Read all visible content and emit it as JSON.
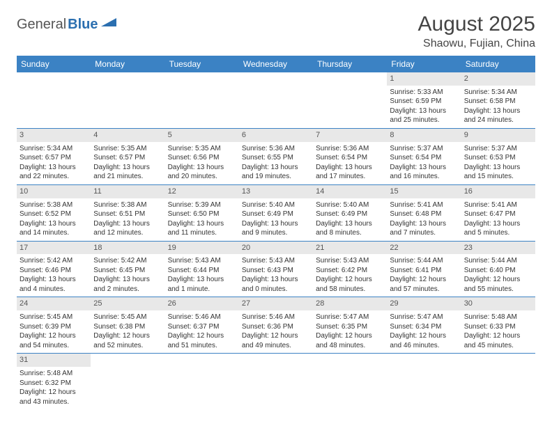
{
  "logo": {
    "text1": "General",
    "text2": "Blue"
  },
  "title": "August 2025",
  "location": "Shaowu, Fujian, China",
  "header_bg": "#3b82c4",
  "border_color": "#3b82c4",
  "daynum_bg": "#e8e8e8",
  "weekdays": [
    "Sunday",
    "Monday",
    "Tuesday",
    "Wednesday",
    "Thursday",
    "Friday",
    "Saturday"
  ],
  "weeks": [
    [
      null,
      null,
      null,
      null,
      null,
      {
        "d": "1",
        "r": "5:33 AM",
        "s": "6:59 PM",
        "dl": "13 hours and 25 minutes."
      },
      {
        "d": "2",
        "r": "5:34 AM",
        "s": "6:58 PM",
        "dl": "13 hours and 24 minutes."
      }
    ],
    [
      {
        "d": "3",
        "r": "5:34 AM",
        "s": "6:57 PM",
        "dl": "13 hours and 22 minutes."
      },
      {
        "d": "4",
        "r": "5:35 AM",
        "s": "6:57 PM",
        "dl": "13 hours and 21 minutes."
      },
      {
        "d": "5",
        "r": "5:35 AM",
        "s": "6:56 PM",
        "dl": "13 hours and 20 minutes."
      },
      {
        "d": "6",
        "r": "5:36 AM",
        "s": "6:55 PM",
        "dl": "13 hours and 19 minutes."
      },
      {
        "d": "7",
        "r": "5:36 AM",
        "s": "6:54 PM",
        "dl": "13 hours and 17 minutes."
      },
      {
        "d": "8",
        "r": "5:37 AM",
        "s": "6:54 PM",
        "dl": "13 hours and 16 minutes."
      },
      {
        "d": "9",
        "r": "5:37 AM",
        "s": "6:53 PM",
        "dl": "13 hours and 15 minutes."
      }
    ],
    [
      {
        "d": "10",
        "r": "5:38 AM",
        "s": "6:52 PM",
        "dl": "13 hours and 14 minutes."
      },
      {
        "d": "11",
        "r": "5:38 AM",
        "s": "6:51 PM",
        "dl": "13 hours and 12 minutes."
      },
      {
        "d": "12",
        "r": "5:39 AM",
        "s": "6:50 PM",
        "dl": "13 hours and 11 minutes."
      },
      {
        "d": "13",
        "r": "5:40 AM",
        "s": "6:49 PM",
        "dl": "13 hours and 9 minutes."
      },
      {
        "d": "14",
        "r": "5:40 AM",
        "s": "6:49 PM",
        "dl": "13 hours and 8 minutes."
      },
      {
        "d": "15",
        "r": "5:41 AM",
        "s": "6:48 PM",
        "dl": "13 hours and 7 minutes."
      },
      {
        "d": "16",
        "r": "5:41 AM",
        "s": "6:47 PM",
        "dl": "13 hours and 5 minutes."
      }
    ],
    [
      {
        "d": "17",
        "r": "5:42 AM",
        "s": "6:46 PM",
        "dl": "13 hours and 4 minutes."
      },
      {
        "d": "18",
        "r": "5:42 AM",
        "s": "6:45 PM",
        "dl": "13 hours and 2 minutes."
      },
      {
        "d": "19",
        "r": "5:43 AM",
        "s": "6:44 PM",
        "dl": "13 hours and 1 minute."
      },
      {
        "d": "20",
        "r": "5:43 AM",
        "s": "6:43 PM",
        "dl": "13 hours and 0 minutes."
      },
      {
        "d": "21",
        "r": "5:43 AM",
        "s": "6:42 PM",
        "dl": "12 hours and 58 minutes."
      },
      {
        "d": "22",
        "r": "5:44 AM",
        "s": "6:41 PM",
        "dl": "12 hours and 57 minutes."
      },
      {
        "d": "23",
        "r": "5:44 AM",
        "s": "6:40 PM",
        "dl": "12 hours and 55 minutes."
      }
    ],
    [
      {
        "d": "24",
        "r": "5:45 AM",
        "s": "6:39 PM",
        "dl": "12 hours and 54 minutes."
      },
      {
        "d": "25",
        "r": "5:45 AM",
        "s": "6:38 PM",
        "dl": "12 hours and 52 minutes."
      },
      {
        "d": "26",
        "r": "5:46 AM",
        "s": "6:37 PM",
        "dl": "12 hours and 51 minutes."
      },
      {
        "d": "27",
        "r": "5:46 AM",
        "s": "6:36 PM",
        "dl": "12 hours and 49 minutes."
      },
      {
        "d": "28",
        "r": "5:47 AM",
        "s": "6:35 PM",
        "dl": "12 hours and 48 minutes."
      },
      {
        "d": "29",
        "r": "5:47 AM",
        "s": "6:34 PM",
        "dl": "12 hours and 46 minutes."
      },
      {
        "d": "30",
        "r": "5:48 AM",
        "s": "6:33 PM",
        "dl": "12 hours and 45 minutes."
      }
    ],
    [
      {
        "d": "31",
        "r": "5:48 AM",
        "s": "6:32 PM",
        "dl": "12 hours and 43 minutes."
      },
      null,
      null,
      null,
      null,
      null,
      null
    ]
  ],
  "labels": {
    "sunrise": "Sunrise:",
    "sunset": "Sunset:",
    "daylight": "Daylight:"
  }
}
